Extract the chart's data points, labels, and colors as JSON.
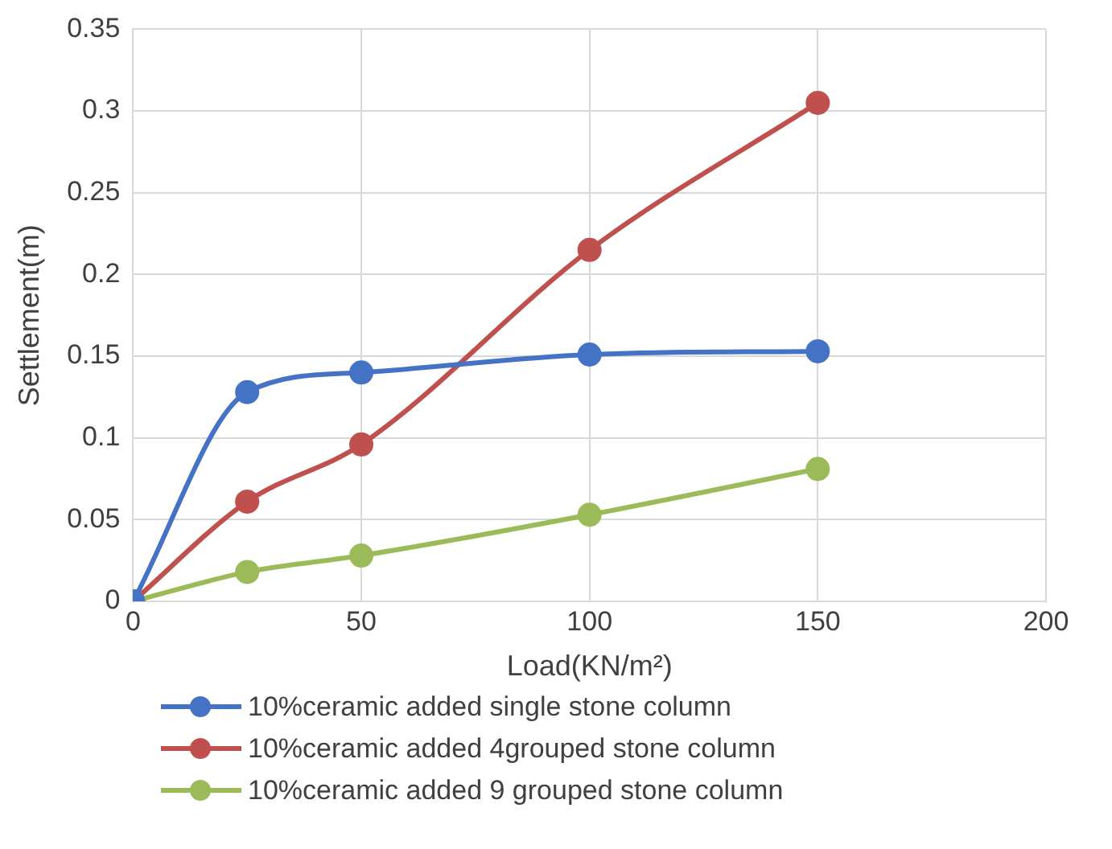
{
  "chart_data": {
    "type": "line",
    "xlabel": "Load(KN/m²)",
    "ylabel": "Settlement(m)",
    "x": [
      0,
      25,
      50,
      100,
      150
    ],
    "series": [
      {
        "name": "10%ceramic added single stone column",
        "color": "#4472c4",
        "values": [
          0,
          0.128,
          0.14,
          0.151,
          0.153
        ]
      },
      {
        "name": "10%ceramic added 4grouped stone column",
        "color": "#c0504d",
        "values": [
          0,
          0.061,
          0.096,
          0.215,
          0.305
        ]
      },
      {
        "name": "10%ceramic added 9 grouped stone column",
        "color": "#9bbb59",
        "values": [
          0,
          0.018,
          0.028,
          0.053,
          0.081
        ]
      }
    ],
    "xlim": [
      0,
      200
    ],
    "xticks": [
      0,
      50,
      100,
      150,
      200
    ],
    "ylim": [
      0,
      0.35
    ],
    "yticks": [
      0,
      0.05,
      0.1,
      0.15,
      0.2,
      0.25,
      0.3,
      0.35
    ],
    "grid": true,
    "legend": "bottom",
    "marker": "circle",
    "line_style": "solid"
  }
}
